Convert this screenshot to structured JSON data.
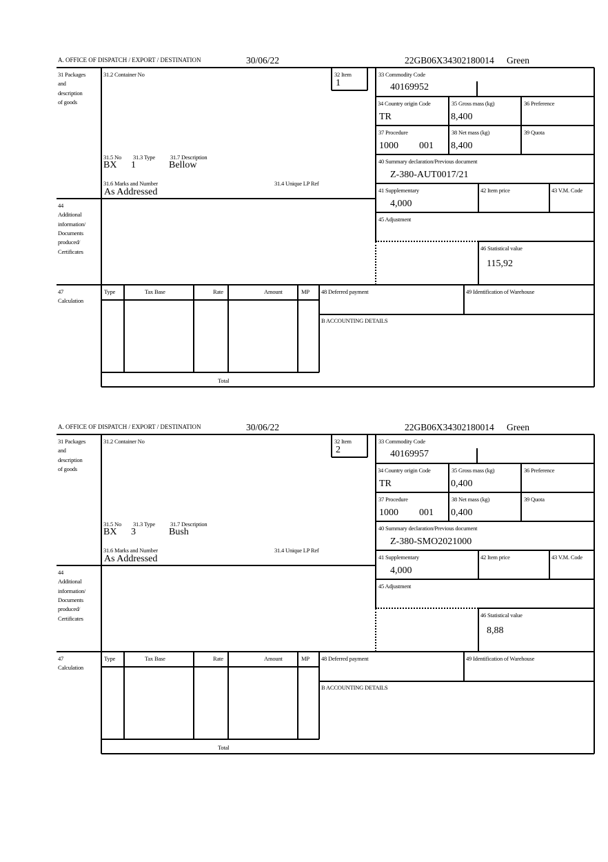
{
  "labels": {
    "office": "A.  OFFICE OF DISPATCH / EXPORT / DESTINATION",
    "packages": [
      "31 Packages",
      "and",
      "description",
      "of goods"
    ],
    "container_no": "31.2 Container No",
    "item": "32 Item",
    "commodity_code": "33 Commodity Code",
    "country_origin": "34 Country origin Code",
    "gross_mass": "35 Gross mass (kg)",
    "preference": "36 Preference",
    "procedure": "37 Procedure",
    "net_mass": "38 Net mass (kg)",
    "quota": "39 Quota",
    "summary_declaration": "40 Summary declaration/Previous document",
    "supplementary": "41 Supplementary",
    "item_price": "42 Item price",
    "vm_code": "43 V.M. Code",
    "adjustment": "45 Adjustment",
    "statistical_value": "46 Statistical value",
    "no": "31.5 No",
    "type": "31.3 Type",
    "description": "31.7 Description",
    "marks": "31.6 Marks and Number",
    "unique_lp_ref": "31.4 Unique LP Ref",
    "additional_info": [
      "44",
      "Additional",
      "information/",
      "Documents",
      "produced/",
      "Certificates"
    ],
    "calculation": [
      "47",
      "Calculation"
    ],
    "calc_columns": [
      "Type",
      "Tax Base",
      "Rate",
      "Amount",
      "MP"
    ],
    "total": "Total",
    "deferred_payment": "48 Deferred payment",
    "warehouse": "49 Identification of Warehouse",
    "accounting": "B ACCOUNTING DETAILS"
  },
  "forms": [
    {
      "date": "30/06/22",
      "reference": "22GB06X34302180014",
      "route": "Green",
      "item": "1",
      "commodity_code": "40169952",
      "country_origin": "TR",
      "gross_mass": "8,400",
      "procedure": "1000",
      "procedure_suffix": "001",
      "net_mass": "8,400",
      "summary_declaration": "Z-380-AUT0017/21",
      "supplementary": "4,000",
      "statistical_value": "115,92",
      "package_no": "BX",
      "package_type": "1",
      "description": "Bellow",
      "marks": "As Addressed"
    },
    {
      "date": "30/06/22",
      "reference": "22GB06X34302180014",
      "route": "Green",
      "item": "2",
      "commodity_code": "40169957",
      "country_origin": "TR",
      "gross_mass": "0,400",
      "procedure": "1000",
      "procedure_suffix": "001",
      "net_mass": "0,400",
      "summary_declaration": "Z-380-SMO2021000",
      "supplementary": "4,000",
      "statistical_value": "8,88",
      "package_no": "BX",
      "package_type": "3",
      "description": "Bush",
      "marks": "As Addressed"
    }
  ]
}
